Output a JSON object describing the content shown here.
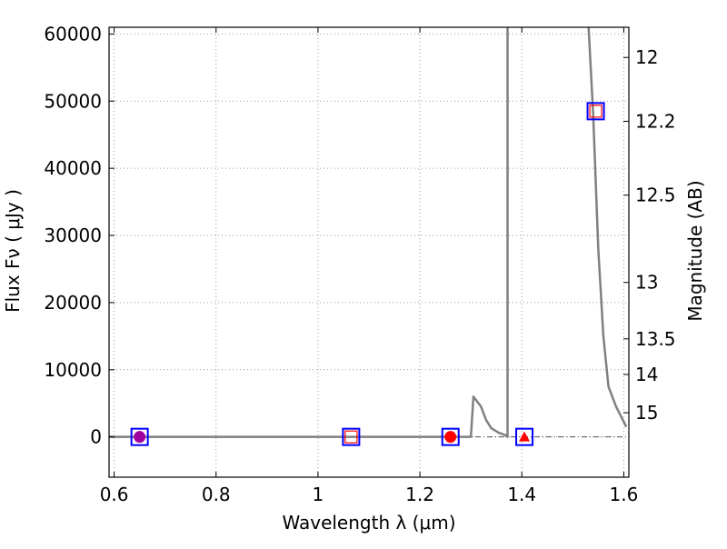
{
  "chart_data": {
    "type": "scatter",
    "xlabel": "Wavelength  λ (μm)",
    "ylabel_left": "Flux  Fν  ( μJy )",
    "ylabel_right": "Magnitude (AB)",
    "xlim": [
      0.59,
      1.61
    ],
    "ylim": [
      -6000,
      61000
    ],
    "x_ticks": [
      0.6,
      0.8,
      1.0,
      1.2,
      1.4,
      1.6
    ],
    "x_tick_labels": [
      "0.6",
      "0.8",
      "1",
      "1.2",
      "1.4",
      "1.6"
    ],
    "y_ticks": [
      0,
      10000,
      20000,
      30000,
      40000,
      50000,
      60000
    ],
    "y_tick_labels": [
      "0",
      "10000",
      "20000",
      "30000",
      "40000",
      "50000",
      "60000"
    ],
    "right_ticks": [
      {
        "label": "12",
        "flux": 56500
      },
      {
        "label": "12.2",
        "flux": 47000
      },
      {
        "label": "12.5",
        "flux": 36000
      },
      {
        "label": "13",
        "flux": 23000
      },
      {
        "label": "13.5",
        "flux": 14600
      },
      {
        "label": "14",
        "flux": 9300
      },
      {
        "label": "15",
        "flux": 3600
      }
    ],
    "grid": true,
    "model_curve": {
      "color": "#808080",
      "points": [
        [
          0.59,
          0
        ],
        [
          1.3,
          0
        ],
        [
          1.305,
          6000
        ],
        [
          1.32,
          4500
        ],
        [
          1.33,
          2500
        ],
        [
          1.34,
          1300
        ],
        [
          1.355,
          600
        ],
        [
          1.37,
          200
        ],
        [
          1.372,
          0
        ],
        [
          1.372,
          61000
        ]
      ],
      "points_2": [
        [
          1.531,
          61000
        ],
        [
          1.54,
          48000
        ],
        [
          1.55,
          28000
        ],
        [
          1.56,
          15000
        ],
        [
          1.57,
          7500
        ],
        [
          1.585,
          4500
        ],
        [
          1.605,
          1500
        ]
      ]
    },
    "reference_line": {
      "y": 0,
      "style": "dashdot",
      "color": "#555555"
    },
    "series": [
      {
        "marker": "open-square-blue",
        "points": [
          [
            0.65,
            0
          ],
          [
            1.065,
            0
          ],
          [
            1.26,
            0
          ],
          [
            1.405,
            0
          ],
          [
            1.545,
            48500
          ]
        ]
      },
      {
        "marker": "open-square-red",
        "points": [
          [
            1.065,
            0
          ],
          [
            1.545,
            48500
          ]
        ]
      },
      {
        "marker": "filled-circle-purple",
        "points": [
          [
            0.65,
            0
          ]
        ]
      },
      {
        "marker": "filled-circle-red",
        "points": [
          [
            1.26,
            0
          ]
        ]
      },
      {
        "marker": "filled-triangle-red",
        "points": [
          [
            1.405,
            0
          ]
        ]
      }
    ],
    "colors": {
      "blue": "#0000ff",
      "red": "#ff0000",
      "purple": "#a000a0",
      "curve": "#808080",
      "grid": "#9a9a9a"
    }
  }
}
